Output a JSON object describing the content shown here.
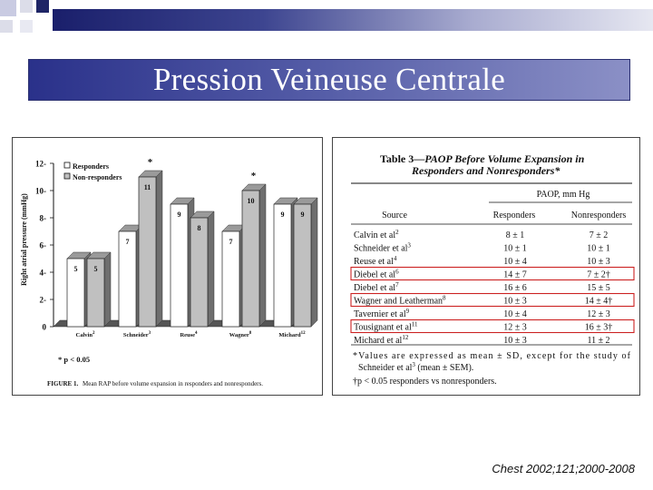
{
  "slide": {
    "title": "Pression Veineuse Centrale",
    "citation": "Chest 2002;121;2000-2008"
  },
  "colors": {
    "title_bar": "#3d4596",
    "responders": "#ffffff",
    "non_responders": "#c0c0c0",
    "highlight_box": "#cc2222"
  },
  "chart_data": {
    "type": "bar",
    "ylabel": "Right atrial pressure (mmHg)",
    "ylim": [
      0,
      12
    ],
    "yticks": [
      0,
      2,
      4,
      6,
      8,
      10,
      12
    ],
    "categories": [
      "Calvin",
      "Schneider",
      "Reuse",
      "Wagner",
      "Michard"
    ],
    "category_refs": [
      "2",
      "3",
      "4",
      "8",
      "12"
    ],
    "series": [
      {
        "name": "Responders",
        "values": [
          5,
          7,
          9,
          7,
          9
        ],
        "labels": [
          "5",
          "7",
          "9",
          "7",
          "9"
        ]
      },
      {
        "name": "Non-responders",
        "values": [
          5,
          11,
          8,
          10,
          9
        ],
        "labels": [
          "5",
          "11",
          "8",
          "10",
          "9"
        ]
      }
    ],
    "significance": [
      "",
      "*",
      "",
      "*",
      ""
    ],
    "footnote": "* p < 0.05",
    "caption_label": "FIGURE 1.",
    "caption_text": "Mean RAP before volume expansion in responders and nonresponders."
  },
  "table": {
    "number": "Table 3—",
    "title_line1": "PAOP Before Volume Expansion in",
    "title_line2": "Responders and Nonresponders*",
    "group_header": "PAOP, mm Hg",
    "columns": [
      "Source",
      "Responders",
      "Nonresponders"
    ],
    "rows": [
      {
        "source": "Calvin et al",
        "ref": "2",
        "responders": "8 ± 1",
        "nonresponders": "7 ± 2",
        "highlight": false
      },
      {
        "source": "Schneider et al",
        "ref": "3",
        "responders": "10 ± 1",
        "nonresponders": "10 ± 1",
        "highlight": false
      },
      {
        "source": "Reuse et al",
        "ref": "4",
        "responders": "10 ± 4",
        "nonresponders": "10 ± 3",
        "highlight": false
      },
      {
        "source": "Diebel et al",
        "ref": "6",
        "responders": "14 ± 7",
        "nonresponders": "7 ± 2†",
        "highlight": true
      },
      {
        "source": "Diebel et al",
        "ref": "7",
        "responders": "16 ± 6",
        "nonresponders": "15 ± 5",
        "highlight": false
      },
      {
        "source": "Wagner and Leatherman",
        "ref": "8",
        "responders": "10 ± 3",
        "nonresponders": "14 ± 4†",
        "highlight": true
      },
      {
        "source": "Tavernier et al",
        "ref": "9",
        "responders": "10 ± 4",
        "nonresponders": "12 ± 3",
        "highlight": false
      },
      {
        "source": "Tousignant et al",
        "ref": "11",
        "responders": "12 ± 3",
        "nonresponders": "16 ± 3†",
        "highlight": true
      },
      {
        "source": "Michard et al",
        "ref": "12",
        "responders": "10 ± 3",
        "nonresponders": "11 ± 2",
        "highlight": false
      }
    ],
    "footnote1_line1": "*Values are expressed as mean ± SD, except for the study of",
    "footnote1_line2": "Schneider et al",
    "footnote1_ref": "3",
    "footnote1_line2_tail": " (mean ± SEM).",
    "footnote2": "†p < 0.05 responders vs nonresponders."
  }
}
